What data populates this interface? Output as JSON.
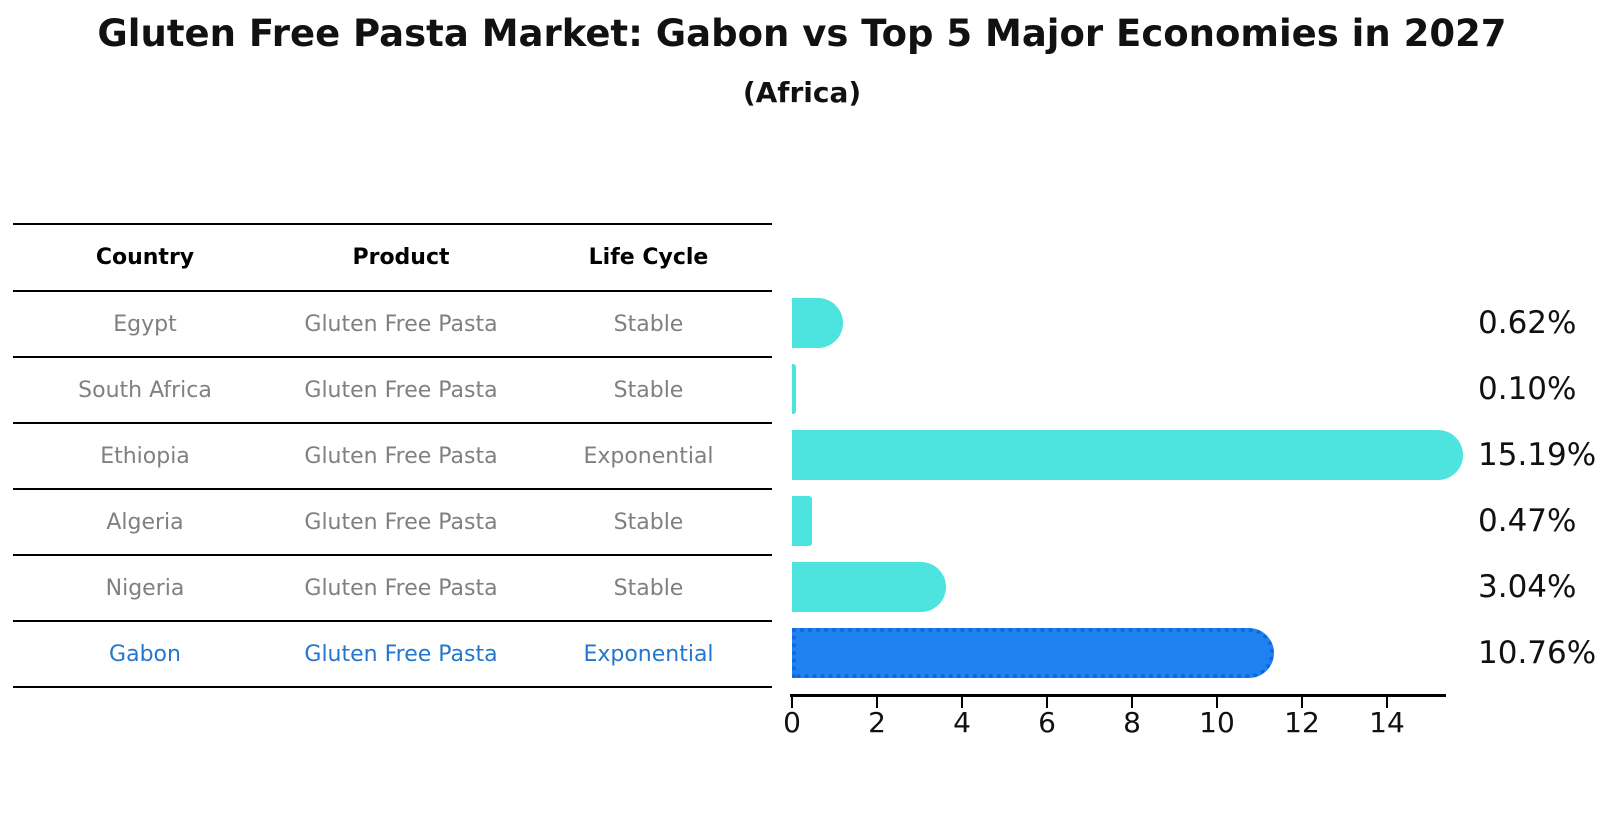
{
  "title": "Gluten Free Pasta Market: Gabon vs Top 5 Major Economies in 2027",
  "subtitle": "(Africa)",
  "table": {
    "headers": [
      "Country",
      "Product",
      "Life Cycle"
    ],
    "rows": [
      {
        "country": "Egypt",
        "product": "Gluten Free Pasta",
        "life_cycle": "Stable"
      },
      {
        "country": "South Africa",
        "product": "Gluten Free Pasta",
        "life_cycle": "Stable"
      },
      {
        "country": "Ethiopia",
        "product": "Gluten Free Pasta",
        "life_cycle": "Exponential"
      },
      {
        "country": "Algeria",
        "product": "Gluten Free Pasta",
        "life_cycle": "Stable"
      },
      {
        "country": "Nigeria",
        "product": "Gluten Free Pasta",
        "life_cycle": "Stable"
      },
      {
        "country": "Gabon",
        "product": "Gluten Free Pasta",
        "life_cycle": "Exponential"
      }
    ],
    "focus_country": "Gabon"
  },
  "chart_data": {
    "type": "bar",
    "orientation": "horizontal",
    "title": "Gluten Free Pasta Market: Gabon vs Top 5 Major Economies in 2027",
    "subtitle": "(Africa)",
    "categories": [
      "Egypt",
      "South Africa",
      "Ethiopia",
      "Algeria",
      "Nigeria",
      "Gabon"
    ],
    "values": [
      0.62,
      0.1,
      15.19,
      0.47,
      3.04,
      10.76
    ],
    "value_labels": [
      "0.62%",
      "0.10%",
      "15.19%",
      "0.47%",
      "3.04%",
      "10.76%"
    ],
    "unit": "percent",
    "xticks": [
      0,
      2,
      4,
      6,
      8,
      10,
      12,
      14
    ],
    "xlim": [
      0,
      15.4
    ],
    "grid": false,
    "legend": false,
    "highlight_index": 5
  },
  "colors": {
    "bar": "#4DE3DE",
    "highlight_bar": "#1E82F0",
    "highlight_bar_border": "#1565D8",
    "highlight_text": "#2577CE",
    "table_text": "#808080",
    "axis_text": "#111111"
  }
}
